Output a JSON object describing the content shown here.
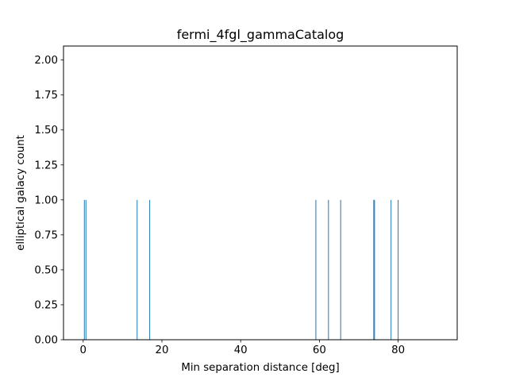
{
  "chart_data": {
    "type": "bar",
    "title": "fermi_4fgl_gammaCatalog",
    "xlabel": "Min separation distance [deg]",
    "ylabel": "elliptical galacy count",
    "xlim": [
      -5,
      95
    ],
    "ylim": [
      0,
      2.1
    ],
    "xticks": [
      0,
      20,
      40,
      60,
      80
    ],
    "xtick_labels": [
      "0",
      "20",
      "40",
      "60",
      "80"
    ],
    "yticks": [
      0.0,
      0.25,
      0.5,
      0.75,
      1.0,
      1.25,
      1.5,
      1.75,
      2.0
    ],
    "ytick_labels": [
      "0.00",
      "0.25",
      "0.50",
      "0.75",
      "1.00",
      "1.25",
      "1.50",
      "1.75",
      "2.00"
    ],
    "bar_width": 0.2,
    "bars": [
      {
        "x": 0.3,
        "value": 1
      },
      {
        "x": 0.7,
        "value": 1
      },
      {
        "x": 13.7,
        "value": 1
      },
      {
        "x": 16.9,
        "value": 1
      },
      {
        "x": 59.1,
        "value": 1
      },
      {
        "x": 62.3,
        "value": 1
      },
      {
        "x": 65.4,
        "value": 1
      },
      {
        "x": 73.8,
        "value": 1
      },
      {
        "x": 74.0,
        "value": 1
      },
      {
        "x": 78.2,
        "value": 1
      },
      {
        "x": 80.0,
        "value": 1
      }
    ],
    "color": "#1f77b4",
    "grid": false
  }
}
